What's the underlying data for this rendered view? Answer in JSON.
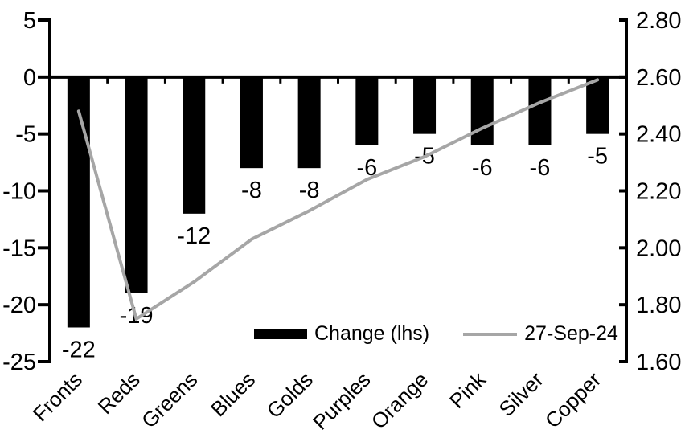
{
  "chart_data": {
    "type": "combo-bar-line",
    "categories": [
      "Fronts",
      "Reds",
      "Greens",
      "Blues",
      "Golds",
      "Purples",
      "Orange",
      "Pink",
      "Silver",
      "Copper"
    ],
    "series": [
      {
        "name": "Change (lhs)",
        "type": "bar",
        "axis": "left",
        "values": [
          -22,
          -19,
          -12,
          -8,
          -8,
          -6,
          -5,
          -6,
          -6,
          -5
        ],
        "data_labels": [
          "-22",
          "-19",
          "-12",
          "-8",
          "-8",
          "-6",
          "-5",
          "-6",
          "-6",
          "-5"
        ]
      },
      {
        "name": "27-Sep-24",
        "type": "line",
        "axis": "right",
        "values": [
          2.48,
          1.75,
          1.88,
          2.03,
          2.13,
          2.24,
          2.32,
          2.42,
          2.51,
          2.59
        ]
      }
    ],
    "left_axis": {
      "tick_labels": [
        "5",
        "0",
        "-5",
        "-10",
        "-15",
        "-20",
        "-25"
      ],
      "max": 5,
      "min": -25
    },
    "right_axis": {
      "tick_labels": [
        "2.80",
        "2.60",
        "2.40",
        "2.20",
        "2.00",
        "1.80",
        "1.60"
      ],
      "max": 2.8,
      "min": 1.6
    },
    "legend": [
      {
        "label": "Change (lhs)",
        "swatch": "bar"
      },
      {
        "label": "27-Sep-24",
        "swatch": "line"
      }
    ],
    "legend_position": "inside-bottom-center",
    "grid": false,
    "colors": {
      "bar": "#000000",
      "line": "#a6a6a6",
      "axis": "#000000",
      "text": "#000000",
      "background": "#ffffff"
    }
  }
}
